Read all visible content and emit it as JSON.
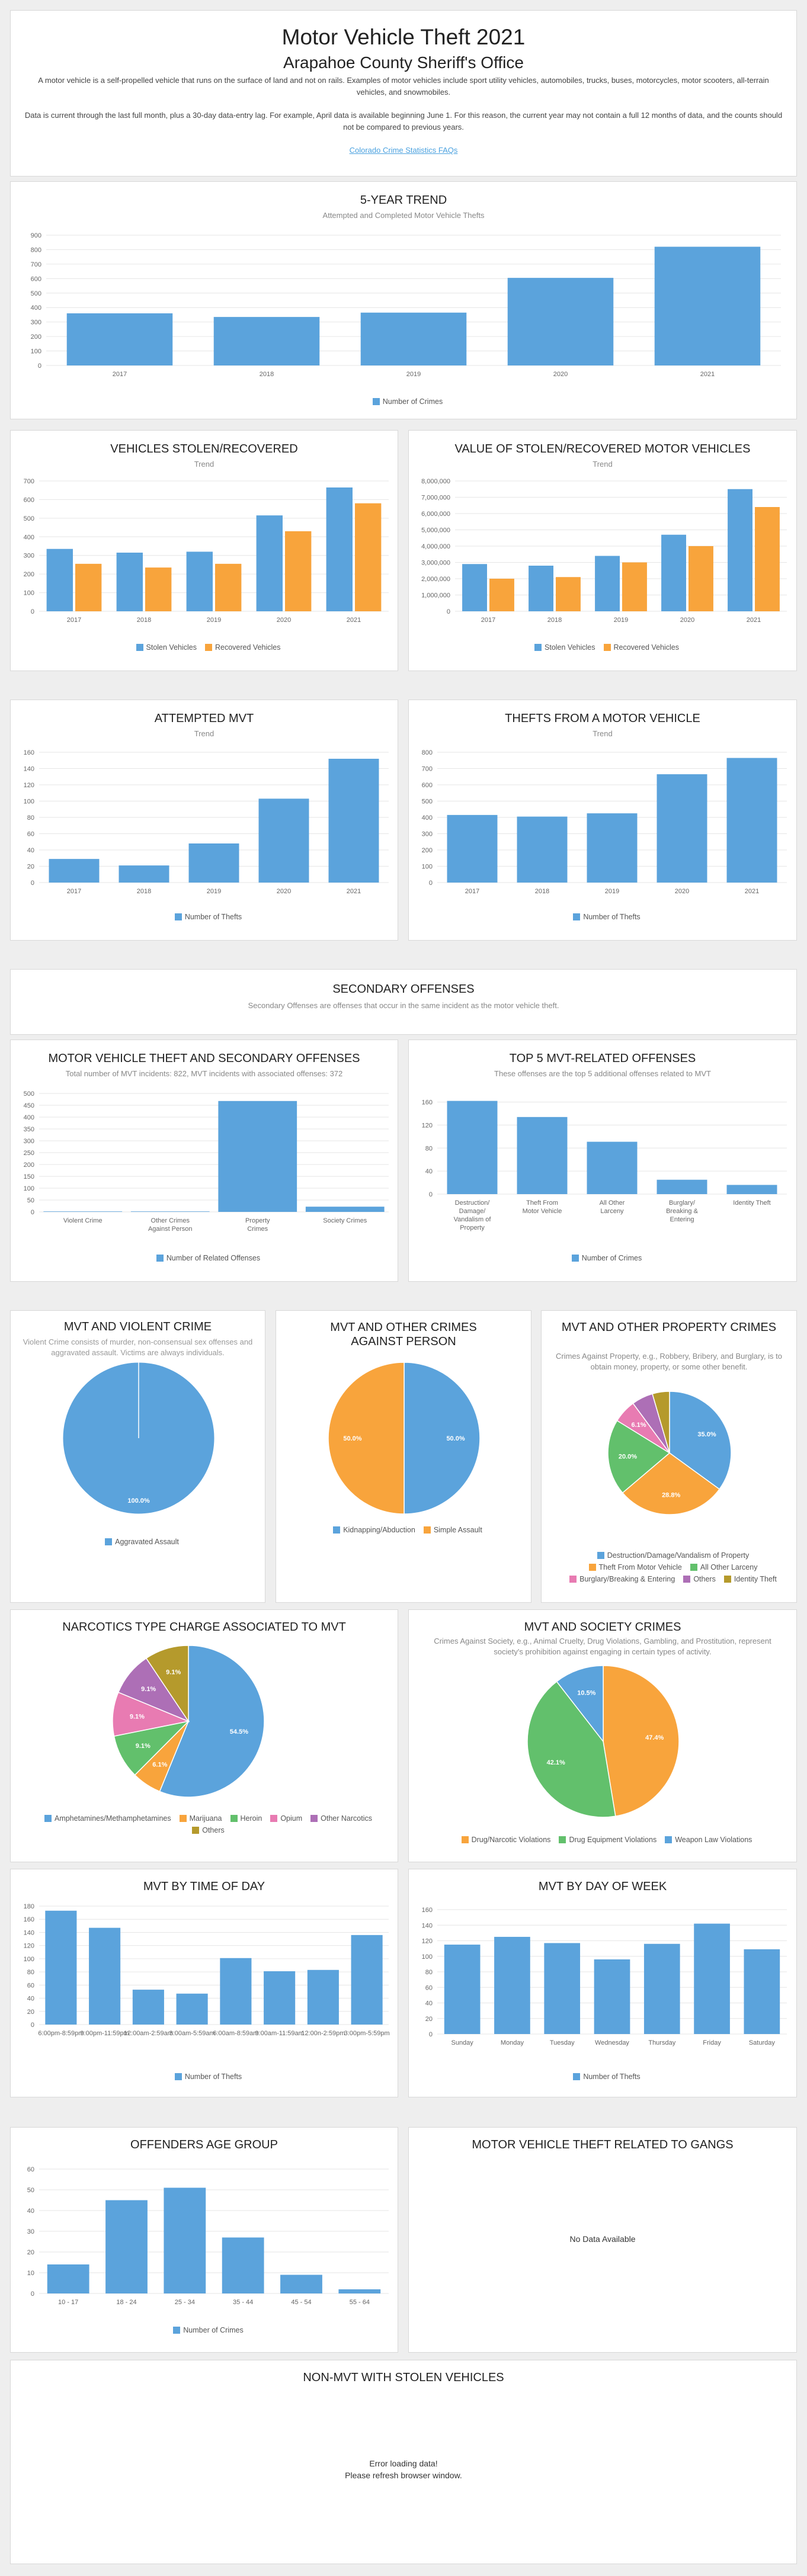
{
  "header": {
    "title": "Motor Vehicle Theft 2021",
    "subtitle": "Arapahoe County Sheriff's Office",
    "desc1": "A motor vehicle is a self-propelled vehicle that runs on the surface of land and not on rails. Examples of motor vehicles include sport utility vehicles, automobiles, trucks, buses, motorcycles, motor scooters, all-terrain vehicles, and snowmobiles.",
    "desc2": "Data is current through the last full month, plus a 30-day data-entry lag. For example, April data is available beginning June 1. For this reason, the current year may not contain a full 12 months of data, and the counts should not be compared to previous years.",
    "link": "Colorado Crime Statistics FAQs"
  },
  "colors": {
    "blue": "#5ba3dc",
    "orange": "#f8a43c",
    "green": "#62c06c",
    "pink": "#e87bb2",
    "purple": "#ad6fb6",
    "olive": "#b59a2c"
  },
  "sections": {
    "secondary_title": "SECONDARY OFFENSES",
    "secondary_sub": "Secondary Offenses are offenses that occur in the same incident as the motor vehicle theft."
  },
  "charts": {
    "trend": {
      "title": "5-YEAR TREND",
      "sub": "Attempted and Completed Motor Vehicle Thefts",
      "chart_data": {
        "type": "bar",
        "categories": [
          "2017",
          "2018",
          "2019",
          "2020",
          "2021"
        ],
        "series": [
          {
            "name": "Number of Crimes",
            "values": [
              360,
              335,
              365,
              605,
              820
            ]
          }
        ],
        "yticks": [
          0,
          100,
          200,
          300,
          400,
          500,
          600,
          700,
          800,
          900
        ],
        "ylim": [
          0,
          900
        ]
      }
    },
    "stolen": {
      "title": "VEHICLES STOLEN/RECOVERED",
      "sub": "Trend",
      "chart_data": {
        "type": "bar",
        "categories": [
          "2017",
          "2018",
          "2019",
          "2020",
          "2021"
        ],
        "series": [
          {
            "name": "Stolen Vehicles",
            "values": [
              335,
              315,
              320,
              515,
              665
            ]
          },
          {
            "name": "Recovered Vehicles",
            "values": [
              255,
              235,
              255,
              430,
              580
            ]
          }
        ],
        "yticks": [
          0,
          100,
          200,
          300,
          400,
          500,
          600,
          700
        ],
        "ylim": [
          0,
          700
        ]
      }
    },
    "value": {
      "title": "VALUE OF STOLEN/RECOVERED MOTOR VEHICLES",
      "sub": "Trend",
      "chart_data": {
        "type": "bar",
        "categories": [
          "2017",
          "2018",
          "2019",
          "2020",
          "2021"
        ],
        "series": [
          {
            "name": "Stolen Vehicles",
            "values": [
              2900000,
              2800000,
              3400000,
              4700000,
              7500000
            ]
          },
          {
            "name": "Recovered Vehicles",
            "values": [
              2000000,
              2100000,
              3000000,
              4000000,
              6400000
            ]
          }
        ],
        "yticks": [
          "0",
          "1,000,000",
          "2,000,000",
          "3,000,000",
          "4,000,000",
          "5,000,000",
          "6,000,000",
          "7,000,000",
          "8,000,000"
        ],
        "ylim": [
          0,
          8000000
        ]
      }
    },
    "attempted": {
      "title": "ATTEMPTED MVT",
      "sub": "Trend",
      "chart_data": {
        "type": "bar",
        "categories": [
          "2017",
          "2018",
          "2019",
          "2020",
          "2021"
        ],
        "series": [
          {
            "name": "Number of Thefts",
            "values": [
              29,
              21,
              48,
              103,
              152
            ]
          }
        ],
        "yticks": [
          0,
          20,
          40,
          60,
          80,
          100,
          120,
          140,
          160
        ],
        "ylim": [
          0,
          160
        ]
      }
    },
    "from_vehicle": {
      "title": "THEFTS FROM A MOTOR VEHICLE",
      "sub": "Trend",
      "chart_data": {
        "type": "bar",
        "categories": [
          "2017",
          "2018",
          "2019",
          "2020",
          "2021"
        ],
        "series": [
          {
            "name": "Number of Thefts",
            "values": [
              415,
              405,
              425,
              665,
              765
            ]
          }
        ],
        "yticks": [
          0,
          100,
          200,
          300,
          400,
          500,
          600,
          700,
          800
        ],
        "ylim": [
          0,
          800
        ]
      }
    },
    "mvt_secondary": {
      "title": "MOTOR VEHICLE THEFT AND SECONDARY OFFENSES",
      "sub": "Total number of MVT incidents: 822, MVT incidents with associated offenses: 372",
      "chart_data": {
        "type": "bar",
        "categories": [
          "Violent Crime",
          "Other Crimes Against Person",
          "Property Crimes",
          "Society Crimes"
        ],
        "series": [
          {
            "name": "Number of Related Offenses",
            "values": [
              2,
              2,
              468,
              22
            ]
          }
        ],
        "yticks": [
          0,
          50,
          100,
          150,
          200,
          250,
          300,
          350,
          400,
          450,
          500
        ],
        "ylim": [
          0,
          500
        ]
      }
    },
    "top5": {
      "title": "TOP 5 MVT-RELATED OFFENSES",
      "sub": "These offenses are the top 5 additional offenses related to MVT",
      "chart_data": {
        "type": "bar",
        "categories": [
          "Destruction/ Damage/ Vandalism of Property",
          "Theft From Motor Vehicle",
          "All Other Larceny",
          "Burglary/ Breaking & Entering",
          "Identity Theft"
        ],
        "series": [
          {
            "name": "Number of Crimes",
            "values": [
              162,
              134,
              91,
              25,
              16
            ]
          }
        ],
        "yticks": [
          0,
          40,
          80,
          120,
          160
        ],
        "ylim": [
          0,
          175
        ]
      }
    },
    "violent": {
      "title": "MVT AND VIOLENT CRIME",
      "sub": "Violent Crime consists of murder, non-consensual sex offenses and aggravated assault. Victims are always individuals.",
      "chart_data": {
        "type": "pie",
        "labels": [
          "Aggravated Assault"
        ],
        "values": [
          100.0
        ],
        "display": [
          "100.0%"
        ]
      }
    },
    "other_person": {
      "title": "MVT AND OTHER CRIMES AGAINST PERSON",
      "sub": "",
      "chart_data": {
        "type": "pie",
        "labels": [
          "Kidnapping/Abduction",
          "Simple Assault"
        ],
        "values": [
          50.0,
          50.0
        ],
        "display": [
          "50.0%",
          "50.0%"
        ]
      }
    },
    "property": {
      "title": "MVT AND OTHER PROPERTY CRIMES",
      "sub": "Crimes Against Property, e.g., Robbery, Bribery, and Burglary, is to obtain money, property, or some other benefit.",
      "chart_data": {
        "type": "pie",
        "labels": [
          "Destruction/Damage/Vandalism of Property",
          "Theft From Motor Vehicle",
          "All Other Larceny",
          "Burglary/Breaking & Entering",
          "Others",
          "Identity Theft"
        ],
        "values": [
          35.0,
          28.8,
          20.0,
          6.1,
          5.6,
          4.5
        ],
        "display": [
          "35.0%",
          "28.8%",
          "20.0%",
          "6.1%",
          "",
          ""
        ]
      }
    },
    "narcotics": {
      "title": "NARCOTICS TYPE CHARGE ASSOCIATED TO MVT",
      "sub": "",
      "chart_data": {
        "type": "pie",
        "labels": [
          "Amphetamines/Methamphetamines",
          "Marijuana",
          "Heroin",
          "Opium",
          "Other Narcotics",
          "Others"
        ],
        "values": [
          54.5,
          6.1,
          9.1,
          9.1,
          9.1,
          9.1
        ],
        "display": [
          "54.5%",
          "6.1%",
          "9.1%",
          "9.1%",
          "9.1%",
          "9.1%"
        ]
      }
    },
    "society": {
      "title": "MVT AND SOCIETY CRIMES",
      "sub": "Crimes Against Society, e.g., Animal Cruelty, Drug Violations, Gambling, and Prostitution, represent society's prohibition against engaging in certain types of activity.",
      "chart_data": {
        "type": "pie",
        "labels": [
          "Drug/Narcotic Violations",
          "Drug Equipment Violations",
          "Weapon Law Violations"
        ],
        "values": [
          47.4,
          42.1,
          10.5
        ],
        "display": [
          "47.4%",
          "42.1%",
          "10.5%"
        ]
      }
    },
    "time_of_day": {
      "title": "MVT BY TIME OF DAY",
      "sub": "",
      "chart_data": {
        "type": "bar",
        "categories": [
          "6:00pm-8:59pm",
          "9:00pm-11:59pm",
          "12:00am-2:59am",
          "3:00am-5:59am",
          "6:00am-8:59am",
          "9:00am-11:59am",
          "12:00n-2:59pm",
          "3:00pm-5:59pm"
        ],
        "series": [
          {
            "name": "Number of Thefts",
            "values": [
              173,
              147,
              53,
              47,
              101,
              81,
              83,
              136
            ]
          }
        ],
        "yticks": [
          0,
          20,
          40,
          60,
          80,
          100,
          120,
          140,
          160,
          180
        ],
        "ylim": [
          0,
          180
        ]
      }
    },
    "day_of_week": {
      "title": "MVT BY DAY OF WEEK",
      "sub": "",
      "chart_data": {
        "type": "bar",
        "categories": [
          "Sunday",
          "Monday",
          "Tuesday",
          "Wednesday",
          "Thursday",
          "Friday",
          "Saturday"
        ],
        "series": [
          {
            "name": "Number of Thefts",
            "values": [
              115,
              125,
              117,
              96,
              116,
              142,
              109
            ]
          }
        ],
        "yticks": [
          0,
          20,
          40,
          60,
          80,
          100,
          120,
          140,
          160
        ],
        "ylim": [
          0,
          160
        ]
      }
    },
    "age": {
      "title": "OFFENDERS AGE GROUP",
      "sub": "",
      "chart_data": {
        "type": "bar",
        "categories": [
          "10 - 17",
          "18 - 24",
          "25 - 34",
          "35 - 44",
          "45 - 54",
          "55 - 64"
        ],
        "series": [
          {
            "name": "Number of Crimes",
            "values": [
              14,
              45,
              51,
              27,
              9,
              2
            ]
          }
        ],
        "yticks": [
          0,
          10,
          20,
          30,
          40,
          50,
          60
        ],
        "ylim": [
          0,
          60
        ]
      }
    },
    "gangs": {
      "title": "MOTOR VEHICLE THEFT RELATED TO GANGS",
      "message": "No Data Available"
    },
    "non_mvt": {
      "title": "NON-MVT WITH STOLEN VEHICLES",
      "message1": "Error loading data!",
      "message2": "Please refresh browser window."
    }
  }
}
